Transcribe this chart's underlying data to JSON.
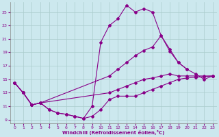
{
  "bg_color": "#cce8ee",
  "line_color": "#880088",
  "grid_color": "#aacccc",
  "xlabel": "Windchill (Refroidissement éolien,°C)",
  "xlim": [
    -0.5,
    23.5
  ],
  "ylim": [
    8.5,
    26.5
  ],
  "yticks": [
    9,
    11,
    13,
    15,
    17,
    19,
    21,
    23,
    25
  ],
  "xticks": [
    0,
    1,
    2,
    3,
    4,
    5,
    6,
    7,
    8,
    9,
    10,
    11,
    12,
    13,
    14,
    15,
    16,
    17,
    18,
    19,
    20,
    21,
    22,
    23
  ],
  "series": [
    {
      "x": [
        0,
        1,
        2,
        3,
        4,
        5,
        6,
        7,
        8,
        9,
        10,
        11,
        12,
        13,
        14,
        15,
        16,
        17,
        18,
        19,
        20,
        21,
        22,
        23
      ],
      "y": [
        14.5,
        13.0,
        11.2,
        11.5,
        10.5,
        10.0,
        9.8,
        9.5,
        9.2,
        9.5,
        10.5,
        12.0,
        12.5,
        12.5,
        12.5,
        13.0,
        13.5,
        14.0,
        14.5,
        15.0,
        15.2,
        15.3,
        15.4,
        15.5
      ]
    },
    {
      "x": [
        0,
        1,
        2,
        3,
        4,
        5,
        6,
        7,
        8,
        9,
        10,
        11,
        12,
        13,
        14,
        15,
        16,
        17,
        18,
        19,
        20,
        21,
        22,
        23
      ],
      "y": [
        14.5,
        13.0,
        11.2,
        11.5,
        10.5,
        10.0,
        9.8,
        9.5,
        9.2,
        11.0,
        20.5,
        23.0,
        24.0,
        26.0,
        25.0,
        25.5,
        25.0,
        21.5,
        19.2,
        17.5,
        16.5,
        15.8,
        15.0,
        15.5
      ]
    },
    {
      "x": [
        0,
        1,
        2,
        3,
        11,
        12,
        13,
        14,
        15,
        16,
        17,
        18,
        19,
        20
      ],
      "y": [
        14.5,
        13.0,
        11.2,
        11.5,
        15.5,
        16.5,
        17.5,
        18.5,
        19.3,
        19.8,
        21.5,
        19.5,
        17.5,
        16.5
      ]
    },
    {
      "x": [
        0,
        1,
        2,
        3,
        11,
        12,
        13,
        14,
        15,
        16,
        17,
        18,
        19,
        20,
        21,
        22,
        23
      ],
      "y": [
        14.5,
        13.0,
        11.2,
        11.5,
        13.0,
        13.5,
        14.0,
        14.5,
        15.0,
        15.2,
        15.5,
        15.8,
        15.5,
        15.5,
        15.5,
        15.5,
        15.5
      ]
    }
  ]
}
